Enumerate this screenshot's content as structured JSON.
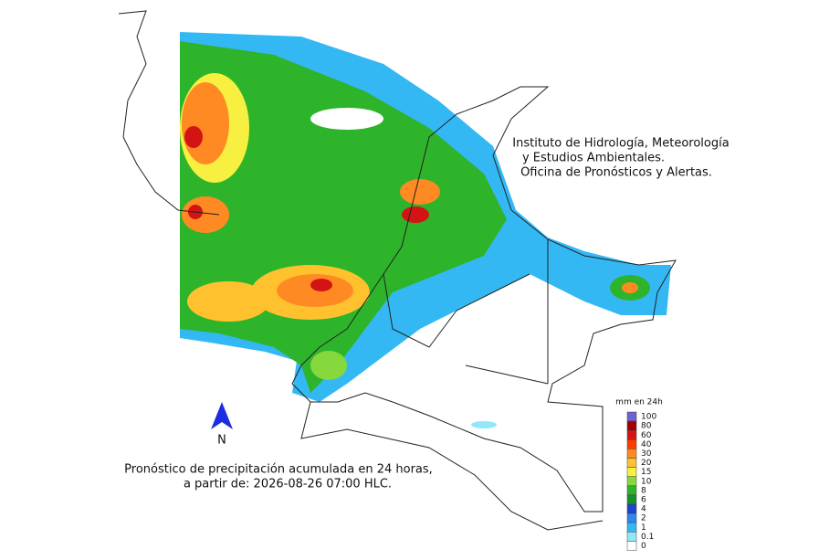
{
  "header": {
    "lines": [
      "Instituto de Hidrología, Meteorología",
      "y Estudios Ambientales.",
      "Oficina de Pronósticos y Alertas."
    ]
  },
  "caption": {
    "lines": [
      "Pronóstico de precipitación acumulada en 24 horas,",
      "a partir de: 2026-08-26 07:00 HLC."
    ]
  },
  "north_label": "N",
  "legend": {
    "title": "mm en 24h",
    "items": [
      {
        "value": 100,
        "color": "#7060d0"
      },
      {
        "value": 80,
        "color": "#a00000"
      },
      {
        "value": 60,
        "color": "#d41414"
      },
      {
        "value": 40,
        "color": "#ff3c00"
      },
      {
        "value": 30,
        "color": "#ff8a24"
      },
      {
        "value": 20,
        "color": "#ffc22e"
      },
      {
        "value": 15,
        "color": "#f8f040"
      },
      {
        "value": 10,
        "color": "#86d83c"
      },
      {
        "value": 8,
        "color": "#2eb42a"
      },
      {
        "value": 6,
        "color": "#16902a"
      },
      {
        "value": 4,
        "color": "#1c44d0"
      },
      {
        "value": 2,
        "color": "#2e86f0"
      },
      {
        "value": 1,
        "color": "#34b8f4"
      },
      {
        "value": 0.1,
        "color": "#92e8f8"
      },
      {
        "value": 0,
        "color": "#ffffff"
      }
    ]
  }
}
